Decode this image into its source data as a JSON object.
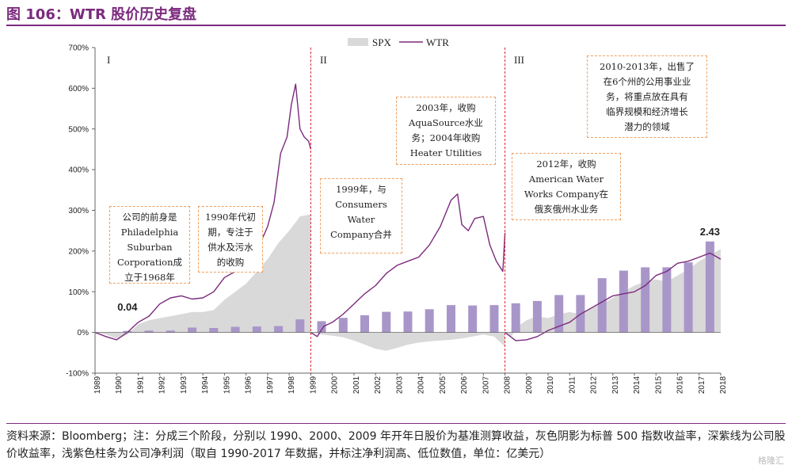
{
  "header": {
    "title": "图 106：WTR 股价历史复盘"
  },
  "source_note": "资料来源：Bloomberg；注：分成三个阶段，分别以 1990、2000、2009 年开年日股价为基准测算收益，灰色阴影为标普 500 指数收益率，深紫线为公司股价收益率，浅紫色柱条为公司净利润（取自 1990-2017 年数据，并标注净利润高、低位数值，单位：亿美元）",
  "watermark": "格隆汇",
  "colors": {
    "accent": "#7b2a7e",
    "wtr_line": "#7b2a7e",
    "spx_area": "#d9d9d9",
    "bars": "#a996c9",
    "divider": "#e0242b",
    "annotation_border": "#f0a060"
  },
  "phases": [
    "I",
    "II",
    "III"
  ],
  "annotations": [
    "公司的前身是\nPhiladelphia\nSuburban\nCorporation成\n立于1968年",
    "1990年代初\n期，专注于\n供水及污水\n的收购",
    "1999年，与\nConsumers\nWater\nCompany合并",
    "2003年，收购\nAquaSource水业\n务；2004年收购\nHeater Utilities",
    "2012年，收购\nAmerican Water\nWorks Company在\n俄亥俄州水业务",
    "2010-2013年，出售了\n在6个州的公用事业业\n务，将重点放在具有\n临界规模和经济增长\n潜力的领域"
  ],
  "chart_data": {
    "type": "line",
    "y_axis": {
      "min": -100,
      "max": 700,
      "step": 100,
      "tick_labels": [
        "-100%",
        "0%",
        "100%",
        "200%",
        "300%",
        "400%",
        "500%",
        "600%",
        "700%"
      ]
    },
    "x_axis": {
      "min": 1989,
      "max": 2018,
      "tick_labels": [
        "1989",
        "1990",
        "1991",
        "1992",
        "1993",
        "1994",
        "1995",
        "1996",
        "1997",
        "1998",
        "1999",
        "2000",
        "2001",
        "2002",
        "2003",
        "2004",
        "2005",
        "2006",
        "2007",
        "2008",
        "2009",
        "2010",
        "2011",
        "2012",
        "2013",
        "2014",
        "2015",
        "2016",
        "2017",
        "2018"
      ]
    },
    "legend": {
      "position": "top-center",
      "items": [
        "SPX",
        "WTR"
      ]
    },
    "phase_dividers": [
      1999.0,
      2008.0
    ],
    "series": [
      {
        "name": "WTR",
        "kind": "line",
        "x": [
          1989.0,
          1989.5,
          1990.0,
          1990.5,
          1991.0,
          1991.5,
          1992.0,
          1992.5,
          1993.0,
          1993.5,
          1994.0,
          1994.5,
          1995.0,
          1995.5,
          1996.0,
          1996.5,
          1997.0,
          1997.3,
          1997.6,
          1997.9,
          1998.1,
          1998.3,
          1998.5,
          1998.7,
          1998.9,
          1999.0
        ],
        "y": [
          0,
          -10,
          -18,
          0,
          25,
          40,
          70,
          85,
          90,
          82,
          85,
          100,
          135,
          150,
          180,
          200,
          260,
          320,
          440,
          480,
          560,
          610,
          500,
          480,
          470,
          450
        ]
      },
      {
        "name": "WTR",
        "kind": "line",
        "x": [
          1999.0,
          1999.3,
          1999.6,
          2000.0,
          2000.5,
          2001.0,
          2001.5,
          2002.0,
          2002.5,
          2003.0,
          2003.5,
          2004.0,
          2004.5,
          2005.0,
          2005.5,
          2005.8,
          2006.0,
          2006.3,
          2006.6,
          2007.0,
          2007.3,
          2007.6,
          2007.9,
          2008.0
        ],
        "y": [
          0,
          -10,
          15,
          25,
          45,
          70,
          95,
          115,
          145,
          165,
          175,
          185,
          215,
          260,
          325,
          340,
          265,
          250,
          280,
          285,
          215,
          175,
          150,
          245
        ]
      },
      {
        "name": "WTR",
        "kind": "line",
        "x": [
          2008.0,
          2008.5,
          2009.0,
          2009.5,
          2010.0,
          2010.5,
          2011.0,
          2011.5,
          2012.0,
          2012.5,
          2013.0,
          2013.5,
          2014.0,
          2014.5,
          2015.0,
          2015.5,
          2016.0,
          2016.5,
          2017.0,
          2017.5,
          2018.0
        ],
        "y": [
          0,
          -20,
          -18,
          -10,
          5,
          15,
          25,
          45,
          60,
          75,
          90,
          95,
          100,
          115,
          140,
          150,
          170,
          175,
          185,
          195,
          180
        ]
      },
      {
        "name": "SPX",
        "kind": "area",
        "x": [
          1989.0,
          1989.5,
          1990.0,
          1990.5,
          1991.0,
          1991.5,
          1992.0,
          1992.5,
          1993.0,
          1993.5,
          1994.0,
          1994.5,
          1995.0,
          1995.5,
          1996.0,
          1996.5,
          1997.0,
          1997.5,
          1998.0,
          1998.5,
          1999.0
        ],
        "y": [
          0,
          -5,
          -15,
          -5,
          20,
          30,
          35,
          40,
          45,
          50,
          50,
          55,
          80,
          100,
          120,
          150,
          180,
          220,
          250,
          285,
          290
        ]
      },
      {
        "name": "SPX",
        "kind": "area",
        "x": [
          1999.0,
          1999.5,
          2000.0,
          2000.5,
          2001.0,
          2001.5,
          2002.0,
          2002.5,
          2003.0,
          2003.5,
          2004.0,
          2004.5,
          2005.0,
          2005.5,
          2006.0,
          2006.5,
          2007.0,
          2007.5,
          2008.0
        ],
        "y": [
          0,
          -5,
          -8,
          -12,
          -20,
          -30,
          -40,
          -45,
          -38,
          -30,
          -25,
          -22,
          -20,
          -18,
          -15,
          -10,
          -5,
          -10,
          -35
        ]
      },
      {
        "name": "SPX",
        "kind": "area",
        "x": [
          2008.0,
          2008.3,
          2008.6,
          2009.0,
          2009.5,
          2010.0,
          2010.5,
          2011.0,
          2011.5,
          2012.0,
          2012.5,
          2013.0,
          2013.5,
          2014.0,
          2014.5,
          2015.0,
          2015.5,
          2016.0,
          2016.5,
          2017.0,
          2017.5,
          2018.0
        ],
        "y": [
          0,
          -10,
          15,
          30,
          40,
          35,
          45,
          50,
          45,
          60,
          70,
          85,
          100,
          115,
          125,
          130,
          125,
          140,
          155,
          175,
          190,
          205
        ]
      }
    ],
    "net_profit": {
      "kind": "bar",
      "x": [
        1990,
        1991,
        1992,
        1993,
        1994,
        1995,
        1996,
        1997,
        1998,
        1999,
        2000,
        2001,
        2002,
        2003,
        2004,
        2005,
        2006,
        2007,
        2008,
        2009,
        2010,
        2011,
        2012,
        2013,
        2014,
        2015,
        2016,
        2017
      ],
      "values": [
        0.04,
        0.05,
        0.05,
        0.13,
        0.12,
        0.15,
        0.16,
        0.17,
        0.35,
        0.3,
        0.39,
        0.46,
        0.55,
        0.56,
        0.62,
        0.73,
        0.72,
        0.73,
        0.78,
        0.84,
        1.0,
        1.0,
        1.45,
        1.65,
        1.74,
        1.74,
        1.87,
        2.43
      ],
      "labeled": {
        "low": "0.04",
        "high": "2.43"
      }
    }
  }
}
